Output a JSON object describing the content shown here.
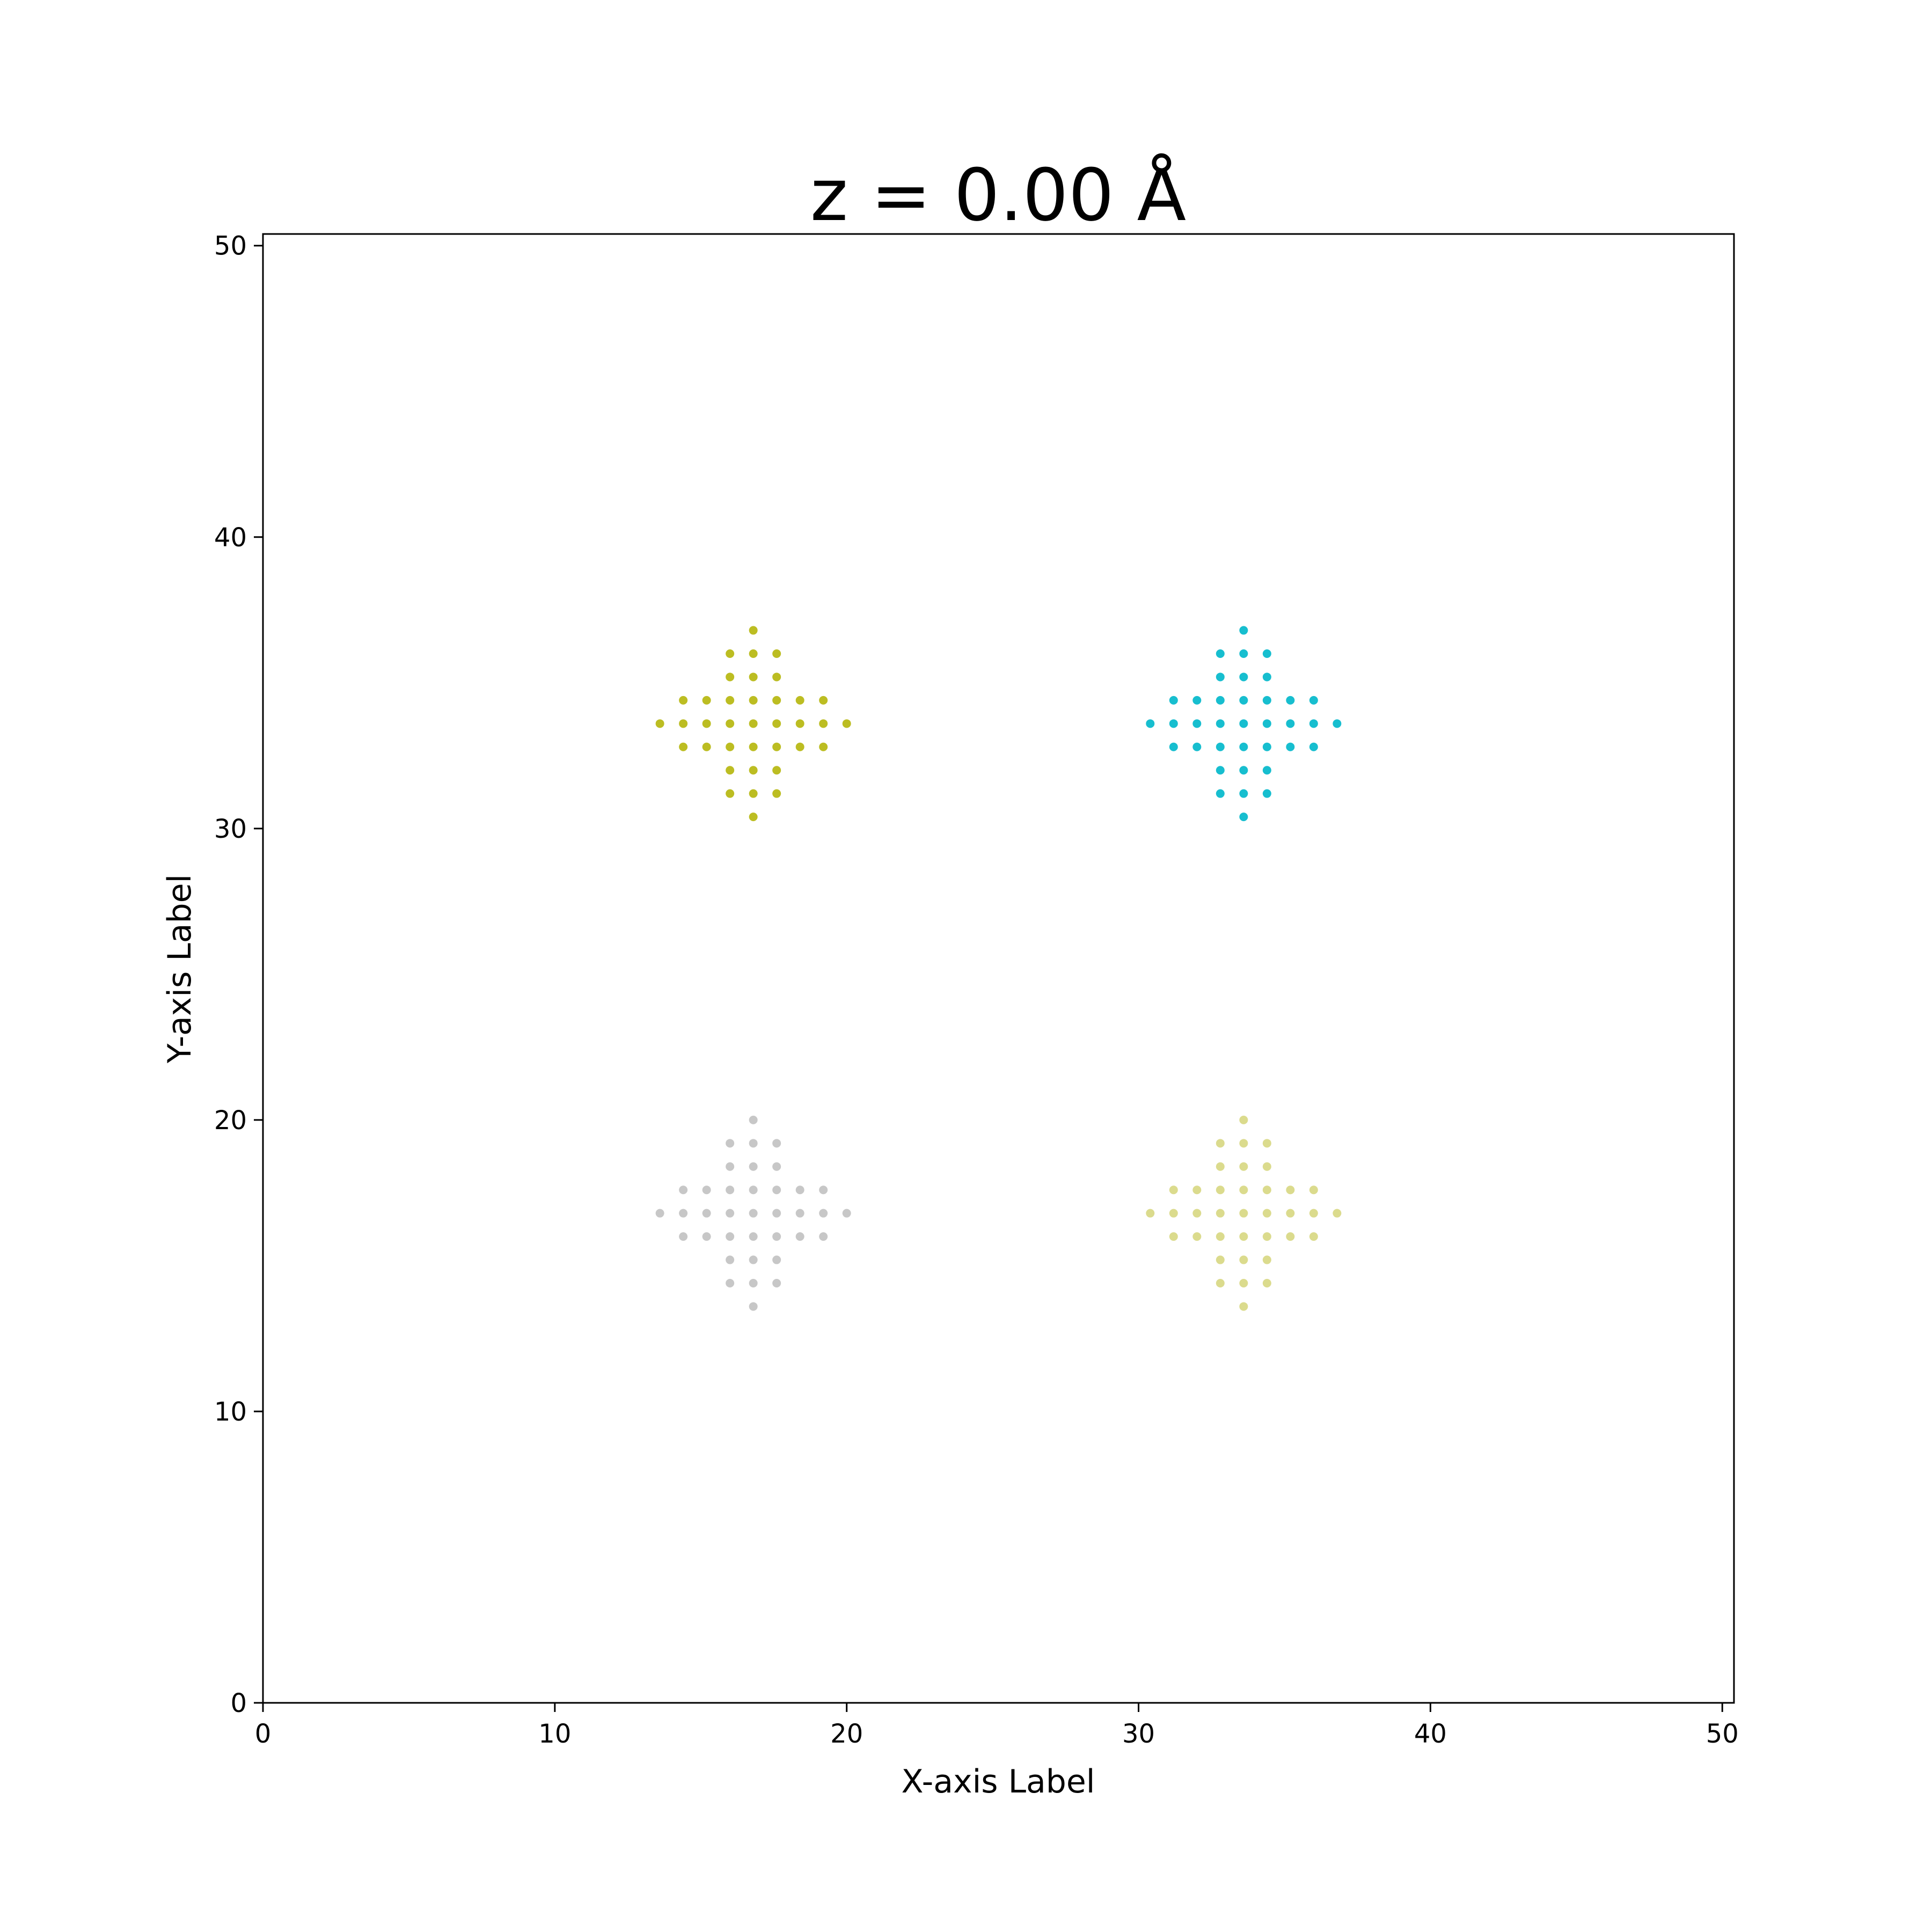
{
  "chart_data": {
    "type": "scatter",
    "title": "z = 0.00 Å",
    "xlabel": "X-axis Label",
    "ylabel": "Y-axis Label",
    "xlim": [
      0,
      50.4
    ],
    "ylim": [
      0,
      50.4
    ],
    "xticks": [
      0,
      10,
      20,
      30,
      40,
      50
    ],
    "yticks": [
      0,
      10,
      20,
      30,
      40,
      50
    ],
    "grid": false,
    "legend": false,
    "marker": "circle",
    "pattern_offsets": [
      [
        0,
        -3.2
      ],
      [
        -0.8,
        -2.4
      ],
      [
        0,
        -2.4
      ],
      [
        0.8,
        -2.4
      ],
      [
        -0.8,
        -1.6
      ],
      [
        0,
        -1.6
      ],
      [
        0.8,
        -1.6
      ],
      [
        -2.4,
        -0.8
      ],
      [
        -1.6,
        -0.8
      ],
      [
        -0.8,
        -0.8
      ],
      [
        0,
        -0.8
      ],
      [
        0.8,
        -0.8
      ],
      [
        1.6,
        -0.8
      ],
      [
        2.4,
        -0.8
      ],
      [
        -3.2,
        0
      ],
      [
        -2.4,
        0
      ],
      [
        -1.6,
        0
      ],
      [
        -0.8,
        0
      ],
      [
        0,
        0
      ],
      [
        0.8,
        0
      ],
      [
        1.6,
        0
      ],
      [
        2.4,
        0
      ],
      [
        3.2,
        0
      ],
      [
        -2.4,
        0.8
      ],
      [
        -1.6,
        0.8
      ],
      [
        -0.8,
        0.8
      ],
      [
        0,
        0.8
      ],
      [
        0.8,
        0.8
      ],
      [
        1.6,
        0.8
      ],
      [
        2.4,
        0.8
      ],
      [
        -0.8,
        1.6
      ],
      [
        0,
        1.6
      ],
      [
        0.8,
        1.6
      ],
      [
        -0.8,
        2.4
      ],
      [
        0,
        2.4
      ],
      [
        0.8,
        2.4
      ],
      [
        0,
        3.2
      ]
    ],
    "clusters": [
      {
        "center": [
          16.8,
          33.6
        ],
        "color": "#bcbd22"
      },
      {
        "center": [
          33.6,
          33.6
        ],
        "color": "#17becf"
      },
      {
        "center": [
          16.8,
          16.8
        ],
        "color": "#c7c7c7"
      },
      {
        "center": [
          33.6,
          16.8
        ],
        "color": "#dbdb8d"
      }
    ]
  }
}
